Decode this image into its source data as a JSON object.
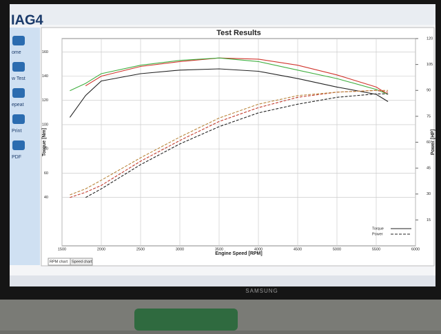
{
  "chart_data": {
    "type": "line",
    "title": "Test Results",
    "x_label": "Engine Speed [RPM]",
    "y_label": "Torque [Nm]",
    "y2_label": "Power [HP]",
    "x": [
      1600,
      1800,
      2000,
      2500,
      3000,
      3500,
      4000,
      4500,
      5000,
      5500,
      5650
    ],
    "xlim": [
      1500,
      6000
    ],
    "xticks": [
      1500,
      2000,
      2500,
      3000,
      3500,
      4000,
      4500,
      5000,
      5500,
      6000
    ],
    "ylim": [
      0,
      171
    ],
    "yticks": [
      40,
      60,
      80,
      100,
      120,
      140,
      160
    ],
    "y2lim": [
      0,
      120
    ],
    "y2ticks": [
      15,
      30,
      45,
      60,
      75,
      90,
      105,
      120
    ],
    "grid": true,
    "legend": "lower right",
    "series": [
      {
        "name": "Torque",
        "color": "#222222",
        "values": [
          106,
          124,
          136,
          142,
          145,
          146,
          144,
          138,
          131,
          125,
          119
        ]
      },
      {
        "color": "#d0342c",
        "values": [
          null,
          132,
          140,
          148,
          152,
          155,
          154,
          149,
          141,
          131,
          125
        ]
      },
      {
        "color": "#3fae3f",
        "values": [
          128,
          134,
          142,
          149,
          153,
          155,
          152,
          145,
          138,
          129,
          125
        ]
      },
      {
        "name": "Power",
        "color": "#222222",
        "dash": true,
        "axis": "y2",
        "values": [
          null,
          28,
          33,
          47,
          59,
          69,
          77,
          82,
          86,
          88,
          88
        ]
      },
      {
        "color": "#c0392b",
        "dash": true,
        "axis": "y2",
        "values": [
          28,
          31,
          35,
          49,
          61,
          72,
          80,
          86,
          89,
          90,
          89
        ]
      },
      {
        "color": "#b9853a",
        "dash": true,
        "axis": "y2",
        "values": [
          29.5,
          33,
          38,
          51,
          63,
          74,
          82,
          87,
          89,
          90,
          90
        ]
      }
    ]
  },
  "ui": {
    "tabs": [
      "RPM chart",
      "Speed chart"
    ],
    "sidebar": [
      "ome",
      "w Test",
      "epeat",
      "Print",
      "PDF"
    ],
    "monitor_brand": "SAMSUNG"
  }
}
